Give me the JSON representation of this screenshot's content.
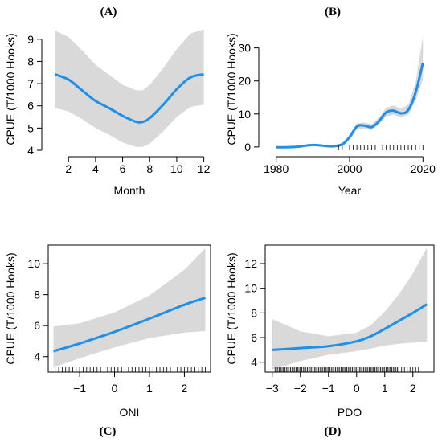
{
  "accent_color": "#1e90e8",
  "band_color": "#d9d9d9",
  "chart_data": [
    {
      "panel": "(A)",
      "type": "line",
      "xlabel": "Month",
      "ylabel": "CPUE (T/1000 Hooks)",
      "xlim": [
        0.5,
        12.5
      ],
      "ylim": [
        4,
        9.5
      ],
      "xticks": [
        2,
        4,
        6,
        8,
        10,
        12
      ],
      "yticks": [
        4,
        5,
        6,
        7,
        8,
        9
      ],
      "frame": "open",
      "x": [
        1,
        2,
        3,
        4,
        5,
        6,
        7,
        7.5,
        8,
        9,
        10,
        11,
        12
      ],
      "fit": [
        7.42,
        7.18,
        6.7,
        6.22,
        5.9,
        5.55,
        5.28,
        5.28,
        5.45,
        6.05,
        6.75,
        7.28,
        7.42
      ],
      "lower": [
        5.9,
        5.75,
        5.4,
        5.0,
        4.7,
        4.35,
        4.15,
        4.15,
        4.3,
        4.85,
        5.5,
        5.95,
        6.05
      ],
      "upper": [
        9.4,
        9.1,
        8.5,
        7.85,
        7.4,
        6.95,
        6.7,
        6.7,
        6.95,
        7.7,
        8.55,
        9.25,
        9.45
      ]
    },
    {
      "panel": "(B)",
      "type": "line",
      "xlabel": "Year",
      "ylabel": "CPUE (T/1000 Hooks)",
      "xlim": [
        1977,
        2023
      ],
      "ylim": [
        -1,
        36
      ],
      "xticks": [
        1980,
        2000,
        2020
      ],
      "yticks": [
        0,
        10,
        20,
        30
      ],
      "frame": "open",
      "x": [
        1980,
        1985,
        1990,
        1995,
        1998,
        2000,
        2002,
        2004,
        2006,
        2008,
        2010,
        2012,
        2014,
        2016,
        2018,
        2020
      ],
      "fit": [
        -0.1,
        0.0,
        0.6,
        0.2,
        0.8,
        3.0,
        6.2,
        6.5,
        6.0,
        7.8,
        10.5,
        11.0,
        10.2,
        11.2,
        16.5,
        25.5
      ],
      "lower": [
        -0.4,
        -0.3,
        0.3,
        -0.1,
        0.4,
        2.2,
        5.3,
        5.6,
        5.1,
        6.8,
        9.3,
        9.8,
        9.0,
        9.8,
        14.0,
        20.5
      ],
      "upper": [
        0.2,
        0.3,
        0.9,
        0.5,
        1.2,
        3.8,
        7.2,
        7.4,
        6.9,
        8.9,
        11.9,
        12.6,
        11.6,
        12.8,
        19.5,
        33.5
      ],
      "rug": [
        1997,
        1998,
        1999,
        2000,
        2001,
        2002,
        2003,
        2004,
        2005,
        2006,
        2007,
        2008,
        2009,
        2010,
        2011,
        2012,
        2013,
        2014,
        2015,
        2016,
        2017,
        2018,
        2019,
        2020
      ]
    },
    {
      "panel": "(C)",
      "type": "line",
      "xlabel": "ONI",
      "ylabel": "CPUE (T/1000 Hooks)",
      "xlim": [
        -1.9,
        2.75
      ],
      "ylim": [
        3.0,
        11.2
      ],
      "xticks": [
        -1,
        0,
        1,
        2
      ],
      "yticks": [
        4,
        6,
        8,
        10
      ],
      "frame": "box",
      "x": [
        -1.75,
        -1,
        0,
        1,
        2,
        2.6
      ],
      "fit": [
        4.35,
        4.85,
        5.6,
        6.45,
        7.35,
        7.8
      ],
      "lower": [
        3.3,
        3.9,
        4.6,
        5.2,
        5.55,
        5.65
      ],
      "upper": [
        5.95,
        6.15,
        6.85,
        7.95,
        9.6,
        11.0
      ],
      "rug": [
        -1.7,
        -1.6,
        -1.5,
        -1.4,
        -1.3,
        -1.2,
        -1.1,
        -1.0,
        -0.9,
        -0.8,
        -0.7,
        -0.6,
        -0.5,
        -0.4,
        -0.3,
        -0.2,
        -0.1,
        0.0,
        0.1,
        0.2,
        0.3,
        0.4,
        0.5,
        0.6,
        0.7,
        0.8,
        0.9,
        1.0,
        1.1,
        1.2,
        1.3,
        1.4,
        1.5,
        1.6,
        1.7,
        1.8,
        1.9,
        2.0,
        2.1,
        2.2,
        2.3,
        2.4,
        2.5,
        2.6
      ]
    },
    {
      "panel": "(D)",
      "type": "line",
      "xlabel": "PDO",
      "ylabel": "CPUE (T/1000 Hooks)",
      "xlim": [
        -3.25,
        2.75
      ],
      "ylim": [
        3.2,
        13.5
      ],
      "xticks": [
        -3,
        -2,
        -1,
        0,
        1,
        2
      ],
      "yticks": [
        4,
        6,
        8,
        10,
        12
      ],
      "frame": "box",
      "x": [
        -3,
        -2,
        -1,
        0,
        0.5,
        1,
        1.5,
        2,
        2.5
      ],
      "fit": [
        5.0,
        5.15,
        5.3,
        5.7,
        6.1,
        6.7,
        7.35,
        8.0,
        8.7
      ],
      "lower": [
        3.4,
        4.1,
        4.6,
        4.9,
        5.1,
        5.35,
        5.5,
        5.6,
        5.65
      ],
      "upper": [
        7.5,
        6.5,
        6.1,
        6.4,
        7.0,
        8.1,
        9.5,
        11.2,
        13.3
      ],
      "rug": [
        -2.9,
        -2.85,
        -2.8,
        -2.75,
        -2.7,
        -2.65,
        -2.6,
        -2.55,
        -2.5,
        -2.45,
        -2.4,
        -2.35,
        -2.3,
        -2.25,
        -2.2,
        -2.15,
        -2.1,
        -2.05,
        -2.0,
        -1.95,
        -1.9,
        -1.85,
        -1.8,
        -1.75,
        -1.7,
        -1.65,
        -1.6,
        -1.55,
        -1.5,
        -1.45,
        -1.4,
        -1.35,
        -1.3,
        -1.25,
        -1.2,
        -1.15,
        -1.1,
        -1.05,
        -1.0,
        -0.95,
        -0.9,
        -0.85,
        -0.8,
        -0.75,
        -0.7,
        -0.65,
        -0.6,
        -0.55,
        -0.5,
        -0.45,
        -0.4,
        -0.35,
        -0.3,
        -0.25,
        -0.2,
        -0.15,
        -0.1,
        -0.05,
        0.0,
        0.05,
        0.1,
        0.15,
        0.2,
        0.25,
        0.3,
        0.35,
        0.4,
        0.45,
        0.5,
        0.55,
        0.6,
        0.65,
        0.7,
        0.75,
        0.8,
        0.85,
        0.9,
        0.95,
        1.0,
        1.05,
        1.1,
        1.15,
        1.2,
        1.25,
        1.3,
        1.35,
        1.4,
        1.45,
        1.5,
        1.6,
        1.7,
        1.8,
        1.9,
        2.0,
        2.1,
        2.2
      ]
    }
  ]
}
